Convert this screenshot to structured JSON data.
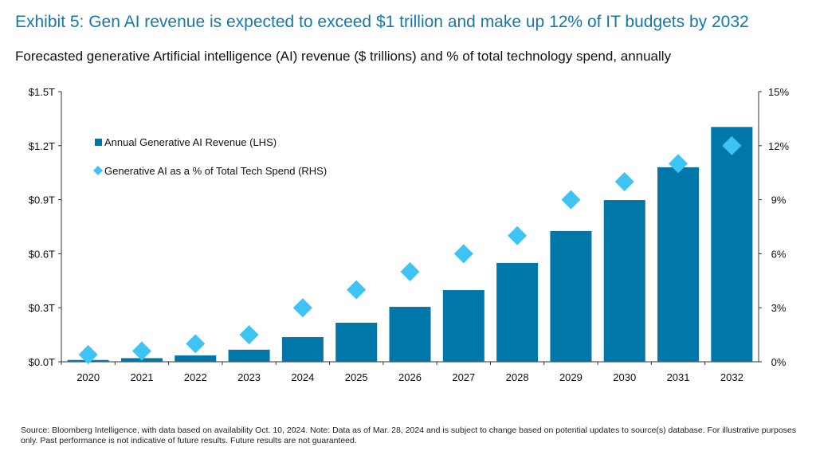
{
  "title": "Exhibit 5: Gen AI revenue is expected to exceed $1 trillion and make up 12% of IT budgets by 2032",
  "subtitle": "Forecasted generative Artificial intelligence (AI) revenue ($ trillions) and % of total technology spend, annually",
  "source": "Source: Bloomberg Intelligence, with data based on availability Oct. 10, 2024. Note: Data as of Mar. 28, 2024 and is subject to change based on potential updates to source(s) database. For illustrative purposes only. Past performance is not indicative of future results. Future results are not guaranteed.",
  "colors": {
    "bar": "#0077a8",
    "diamond": "#3ec3f5",
    "title": "#1479a8"
  },
  "chart_data": {
    "type": "bar",
    "categories": [
      "2020",
      "2021",
      "2022",
      "2023",
      "2024",
      "2025",
      "2026",
      "2027",
      "2028",
      "2029",
      "2030",
      "2031",
      "2032"
    ],
    "series": [
      {
        "name": "Annual Generative AI Revenue (LHS)",
        "type": "bar",
        "axis": "left",
        "unit": "$ trillions",
        "values": [
          0.01,
          0.02,
          0.035,
          0.067,
          0.137,
          0.217,
          0.305,
          0.398,
          0.549,
          0.726,
          0.898,
          1.08,
          1.304
        ]
      },
      {
        "name": "Generative AI as a % of Total Tech Spend (RHS)",
        "type": "scatter",
        "marker": "diamond",
        "axis": "right",
        "unit": "%",
        "values": [
          0.4,
          0.6,
          1.0,
          1.5,
          3,
          4,
          5,
          6,
          7,
          9,
          10,
          11,
          12
        ]
      }
    ],
    "left_axis": {
      "range": [
        0,
        1.5
      ],
      "ticks": [
        "$0.0T",
        "$0.3T",
        "$0.6T",
        "$0.9T",
        "$1.2T",
        "$1.5T"
      ]
    },
    "right_axis": {
      "range": [
        0,
        15
      ],
      "ticks": [
        "0%",
        "3%",
        "6%",
        "9%",
        "12%",
        "15%"
      ]
    },
    "grid": false,
    "legend_placement": "top-left"
  }
}
